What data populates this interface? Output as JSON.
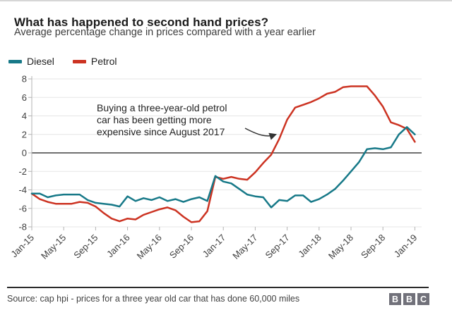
{
  "header": {
    "title": "What has happened to second hand prices?",
    "subtitle": "Average percentage change in prices compared with a year earlier"
  },
  "annotation": {
    "lines": [
      "Buying a three-year-old petrol",
      "car has been getting more",
      "expensive since August 2017"
    ]
  },
  "footer": {
    "source": "Source: cap hpi - prices for a three year old car that has done 60,000 miles",
    "logo_letters": [
      "B",
      "B",
      "C"
    ]
  },
  "colors": {
    "diesel": "#177988",
    "petrol": "#cc3322",
    "grid": "#e6e6e6",
    "zero_line": "#404040",
    "axis": "#b3b3b3",
    "tick_text": "#404040",
    "annotation_text": "#222222",
    "arrow": "#333333"
  },
  "chart_data": {
    "type": "line",
    "title": "What has happened to second hand prices?",
    "subtitle": "Average percentage change in prices compared with a year earlier",
    "x_frequency": "monthly",
    "x_range": [
      "Jan-15",
      "Jan-19"
    ],
    "x_tick_labels": [
      "Jan-15",
      "May-15",
      "Sep-15",
      "Jan-16",
      "May-16",
      "Sep-16",
      "Jan-17",
      "May-17",
      "Sep-17",
      "Jan-18",
      "May-18",
      "Sep-18",
      "Jan-19"
    ],
    "x_tick_every_months": 4,
    "y_ticks": [
      8,
      6,
      4,
      2,
      0,
      -2,
      -4,
      -6,
      -8
    ],
    "ylim": [
      -8,
      8
    ],
    "grid": "horizontal",
    "zero_line": true,
    "legend_position": "top-left",
    "series": [
      {
        "name": "Diesel",
        "color": "#177988",
        "values": [
          -4.4,
          -4.4,
          -4.8,
          -4.6,
          -4.5,
          -4.5,
          -4.5,
          -5.1,
          -5.4,
          -5.5,
          -5.6,
          -5.8,
          -4.7,
          -5.2,
          -4.9,
          -5.1,
          -4.8,
          -5.2,
          -5.0,
          -5.3,
          -5.0,
          -4.8,
          -5.2,
          -2.5,
          -3.1,
          -3.3,
          -3.9,
          -4.5,
          -4.7,
          -4.8,
          -5.9,
          -5.1,
          -5.2,
          -4.6,
          -4.6,
          -5.3,
          -5.0,
          -4.5,
          -3.9,
          -3.0,
          -2.0,
          -1.0,
          0.4,
          0.5,
          0.4,
          0.6,
          2.0,
          2.8,
          2.0
        ]
      },
      {
        "name": "Petrol",
        "color": "#cc3322",
        "values": [
          -4.4,
          -5.0,
          -5.3,
          -5.5,
          -5.5,
          -5.5,
          -5.3,
          -5.4,
          -5.8,
          -6.5,
          -7.1,
          -7.4,
          -7.1,
          -7.2,
          -6.7,
          -6.4,
          -6.1,
          -5.9,
          -6.2,
          -6.9,
          -7.5,
          -7.4,
          -6.3,
          -2.6,
          -2.8,
          -2.6,
          -2.8,
          -2.9,
          -2.1,
          -1.1,
          -0.2,
          1.5,
          3.6,
          4.9,
          5.2,
          5.5,
          5.9,
          6.4,
          6.6,
          7.1,
          7.2,
          7.2,
          7.2,
          6.2,
          5.0,
          3.3,
          3.0,
          2.6,
          1.2
        ]
      }
    ]
  }
}
